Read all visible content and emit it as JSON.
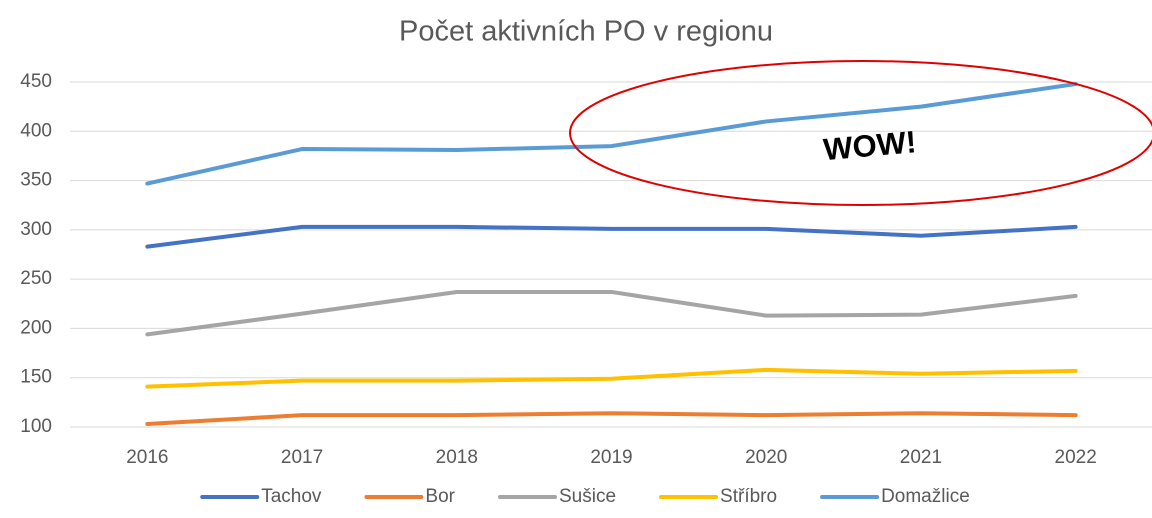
{
  "chart_data": {
    "type": "line",
    "title": "Počet aktivních PO v regionu",
    "categories": [
      "2016",
      "2017",
      "2018",
      "2019",
      "2020",
      "2021",
      "2022"
    ],
    "series": [
      {
        "name": "Tachov",
        "color": "#4472c4",
        "values": [
          283,
          303,
          303,
          301,
          301,
          294,
          303
        ]
      },
      {
        "name": "Bor",
        "color": "#ed7d31",
        "values": [
          103,
          112,
          112,
          114,
          112,
          114,
          112
        ]
      },
      {
        "name": "Sušice",
        "color": "#a5a5a5",
        "values": [
          194,
          215,
          237,
          237,
          213,
          214,
          233
        ]
      },
      {
        "name": "Stříbro",
        "color": "#ffc000",
        "values": [
          141,
          147,
          147,
          149,
          158,
          154,
          157
        ]
      },
      {
        "name": "Domažlice",
        "color": "#5b9bd5",
        "values": [
          347,
          382,
          381,
          385,
          410,
          425,
          448
        ]
      }
    ],
    "annotation": "WOW!",
    "ylim": [
      100,
      450
    ],
    "yticks": [
      100,
      150,
      200,
      250,
      300,
      350,
      400,
      450
    ],
    "grid": true,
    "legend": "bottom"
  }
}
